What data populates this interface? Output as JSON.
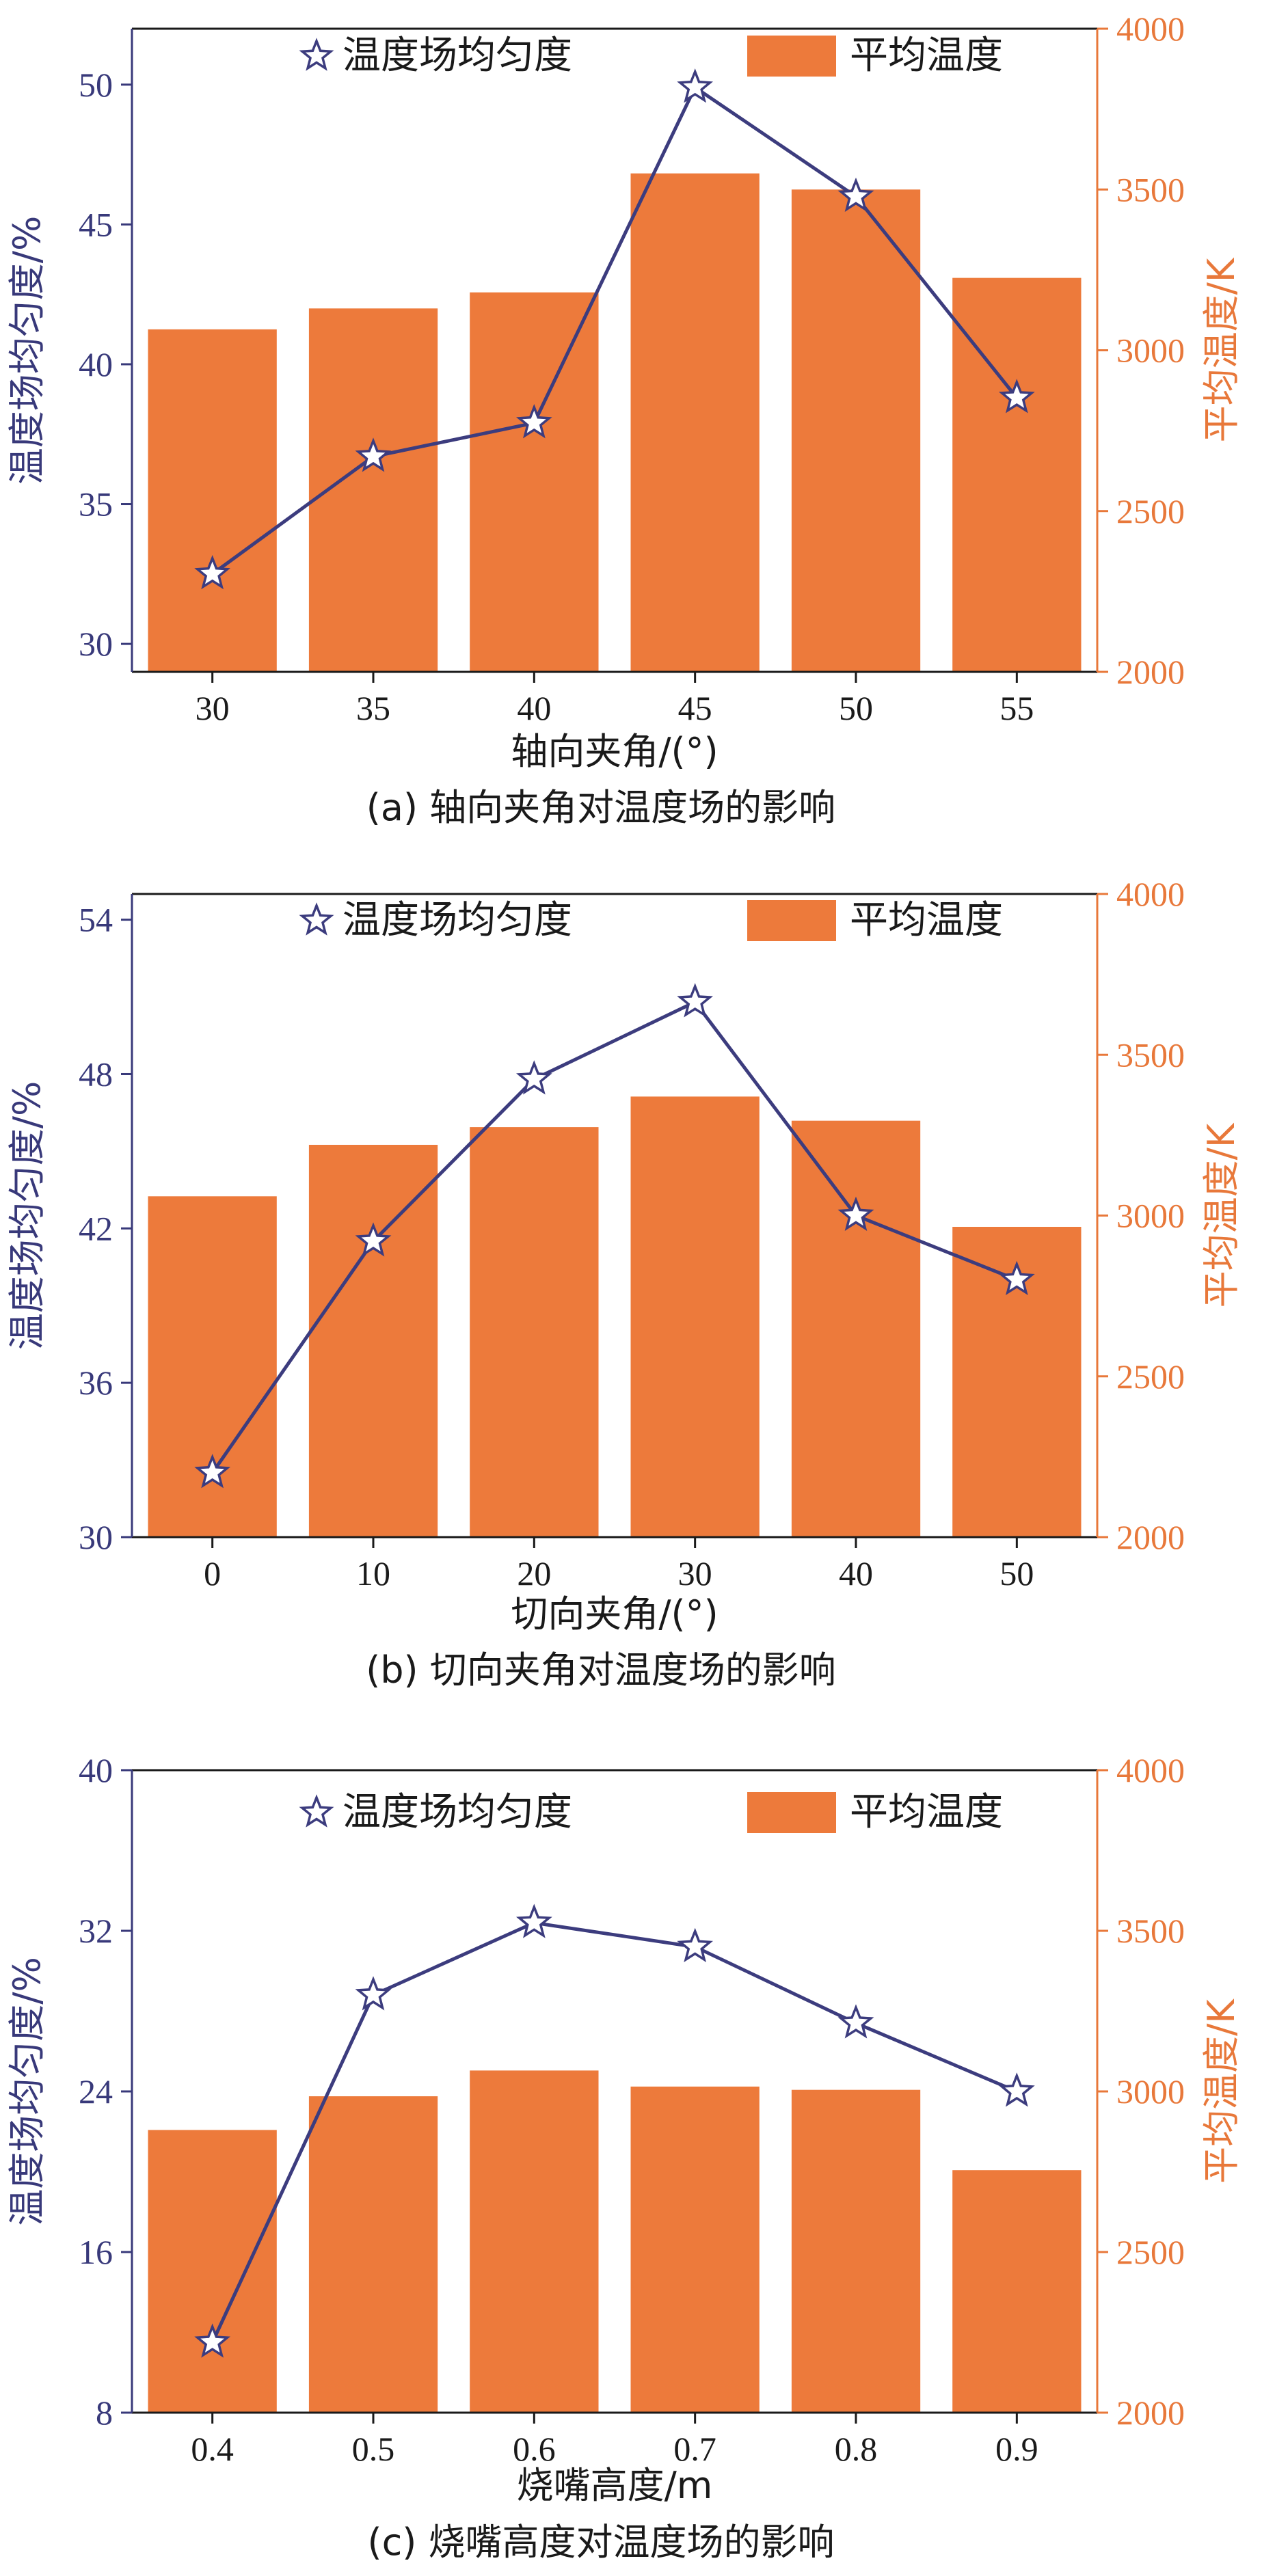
{
  "colors": {
    "bar": "#ed7a3b",
    "line": "#3c3c7e",
    "left_axis": "#38397a",
    "right_axis": "#e8783a",
    "frame": "#1a1a1a"
  },
  "legend": {
    "line_label": "温度场均匀度",
    "bar_label": "平均温度",
    "line_marker_icon": "star-icon"
  },
  "chart_data": [
    {
      "type": "bar+line",
      "caption": "(a) 轴向夹角对温度场的影响",
      "xlabel": "轴向夹角/(°)",
      "ylabel_left": "温度场均匀度/%",
      "ylabel_right": "平均温度/K",
      "categories": [
        "30",
        "35",
        "40",
        "45",
        "50",
        "55"
      ],
      "series": [
        {
          "name": "平均温度",
          "kind": "bar",
          "axis": "right",
          "values": [
            3065,
            3130,
            3180,
            3550,
            3500,
            3225
          ]
        },
        {
          "name": "温度场均匀度",
          "kind": "line",
          "axis": "left",
          "values": [
            32.5,
            36.7,
            37.9,
            49.9,
            46.0,
            38.8
          ]
        }
      ],
      "ylim_left": [
        29,
        52
      ],
      "yticks_left": [
        "30",
        "35",
        "40",
        "45",
        "50"
      ],
      "ylim_right": [
        2000,
        4000
      ],
      "yticks_right": [
        "2000",
        "2500",
        "3000",
        "3500",
        "4000"
      ]
    },
    {
      "type": "bar+line",
      "caption": "(b) 切向夹角对温度场的影响",
      "xlabel": "切向夹角/(°)",
      "ylabel_left": "温度场均匀度/%",
      "ylabel_right": "平均温度/K",
      "categories": [
        "0",
        "10",
        "20",
        "30",
        "40",
        "50"
      ],
      "series": [
        {
          "name": "平均温度",
          "kind": "bar",
          "axis": "right",
          "values": [
            3060,
            3220,
            3275,
            3370,
            3295,
            2965
          ]
        },
        {
          "name": "温度场均匀度",
          "kind": "line",
          "axis": "left",
          "values": [
            32.5,
            41.5,
            47.8,
            50.8,
            42.5,
            40.0
          ]
        }
      ],
      "ylim_left": [
        30,
        55
      ],
      "yticks_left": [
        "30",
        "36",
        "42",
        "48",
        "54"
      ],
      "ylim_right": [
        2000,
        4000
      ],
      "yticks_right": [
        "2000",
        "2500",
        "3000",
        "3500",
        "4000"
      ]
    },
    {
      "type": "bar+line",
      "caption": "(c) 烧嘴高度对温度场的影响",
      "xlabel": "烧嘴高度/m",
      "ylabel_left": "温度场均匀度/%",
      "ylabel_right": "平均温度/K",
      "categories": [
        "0.4",
        "0.5",
        "0.6",
        "0.7",
        "0.8",
        "0.9"
      ],
      "series": [
        {
          "name": "平均温度",
          "kind": "bar",
          "axis": "right",
          "values": [
            2880,
            2985,
            3065,
            3015,
            3005,
            2755
          ]
        },
        {
          "name": "温度场均匀度",
          "kind": "line",
          "axis": "left",
          "values": [
            11.5,
            28.8,
            32.4,
            31.2,
            27.4,
            24.0
          ]
        }
      ],
      "ylim_left": [
        8,
        40
      ],
      "yticks_left": [
        "8",
        "16",
        "24",
        "32",
        "40"
      ],
      "ylim_right": [
        2000,
        4000
      ],
      "yticks_right": [
        "2000",
        "2500",
        "3000",
        "3500",
        "4000"
      ]
    }
  ]
}
